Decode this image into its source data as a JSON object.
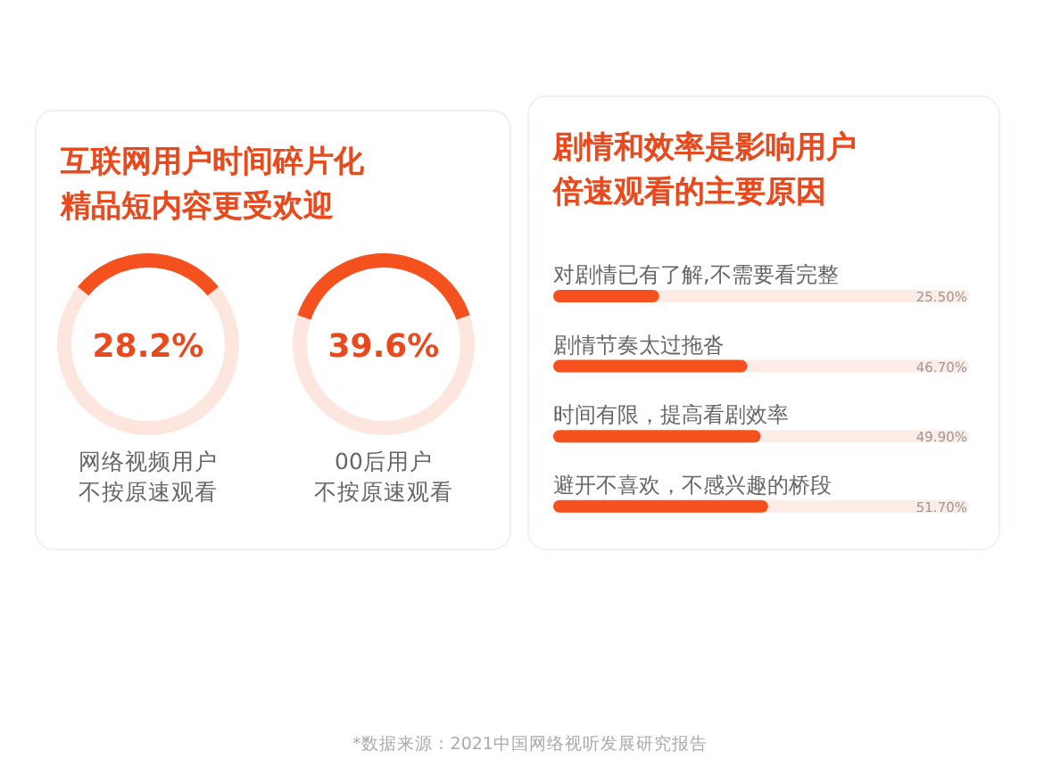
{
  "chart_data": [
    {
      "type": "donut",
      "title": "互联网用户时间碎片化精品短内容更受欢迎",
      "categories": [
        null,
        null
      ],
      "values": [
        28.2,
        71.8
      ],
      "colors": [
        "#f4511e",
        "#fde6de"
      ],
      "xlabel": "网络视频用户不按原速观看",
      "annotations": [
        "28.2%"
      ]
    },
    {
      "type": "donut",
      "categories": [
        null,
        null
      ],
      "values": [
        39.6,
        60.4
      ],
      "colors": [
        "#f4511e",
        "#fde6de"
      ],
      "xlabel": "00后用户不按原速观看",
      "annotations": [
        "39.6%"
      ]
    },
    {
      "type": "bar",
      "orientation": "horizontal",
      "title": "剧情和效率是影响用户倍速观看的主要原因",
      "categories": [
        "对剧情已有了解,不需要看完整",
        "剧情节奏太过拖沓",
        "时间有限，提高看剧效率",
        "避开不喜欢，不感兴趣的桥段"
      ],
      "values": [
        25.5,
        46.7,
        49.9,
        51.7
      ],
      "color": "#f4511e",
      "xlim": [
        0,
        100
      ],
      "value_labels": [
        "25.50%",
        "46.70%",
        "49.90%",
        "51.70%"
      ],
      "annotations": [
        "*数据来源：2021中国网络视听发展研究报告"
      ]
    }
  ]
}
